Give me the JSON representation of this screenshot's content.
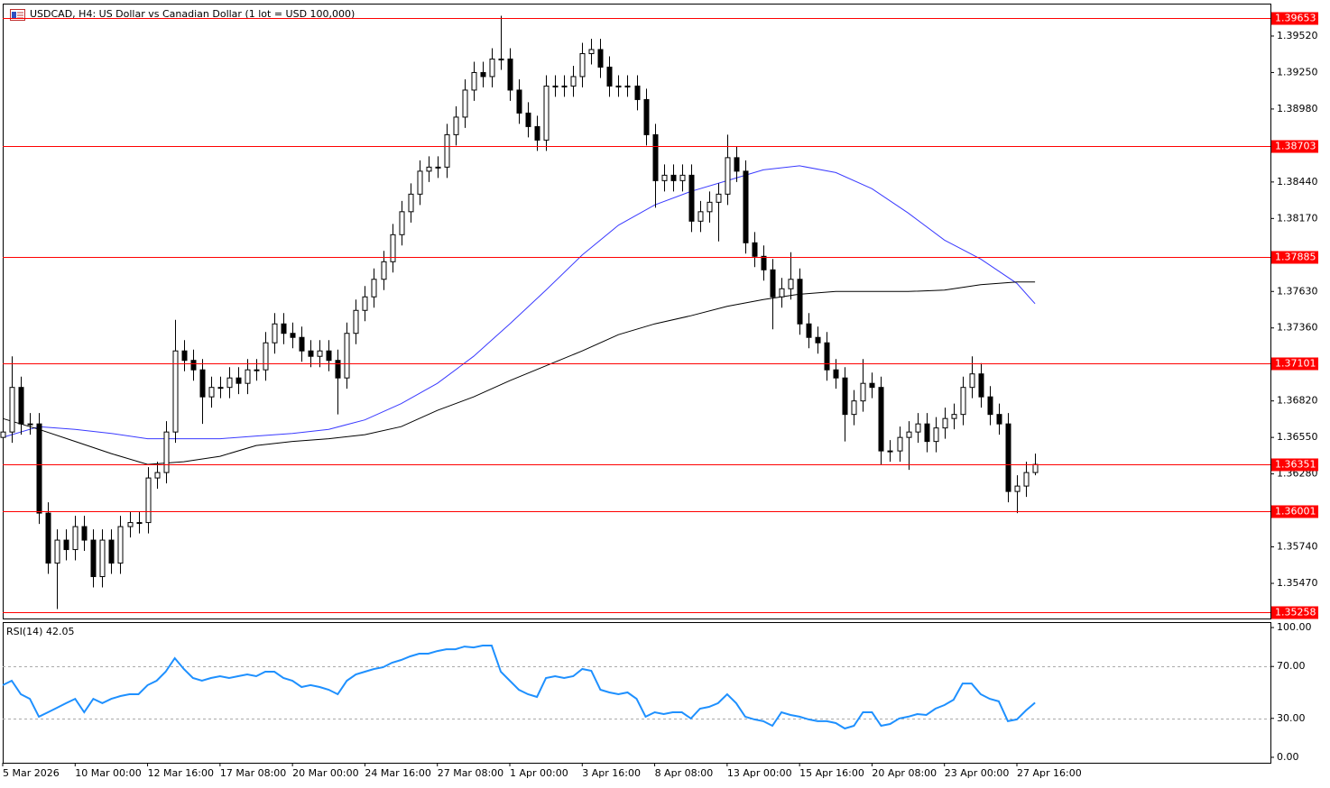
{
  "chart_data": {
    "type": "candlestick",
    "title": "USDCAD, H4:  US Dollar vs Canadian Dollar (1 lot = USD 100,000)",
    "xlim": [
      0,
      140
    ],
    "xticks": [
      {
        "value": 0,
        "label": "5 Mar 2026"
      },
      {
        "value": 8,
        "label": "10 Mar 00:00"
      },
      {
        "value": 16,
        "label": "12 Mar 16:00"
      },
      {
        "value": 24,
        "label": "17 Mar 08:00"
      },
      {
        "value": 32,
        "label": "20 Mar 00:00"
      },
      {
        "value": 40,
        "label": "24 Mar 16:00"
      },
      {
        "value": 48,
        "label": "27 Mar 08:00"
      },
      {
        "value": 56,
        "label": "1 Apr 00:00"
      },
      {
        "value": 64,
        "label": "3 Apr 16:00"
      },
      {
        "value": 72,
        "label": "8 Apr 08:00"
      },
      {
        "value": 80,
        "label": "13 Apr 00:00"
      },
      {
        "value": 88,
        "label": "15 Apr 16:00"
      },
      {
        "value": 96,
        "label": "20 Apr 08:00"
      },
      {
        "value": 104,
        "label": "23 Apr 00:00"
      },
      {
        "value": 112,
        "label": "27 Apr 16:00"
      }
    ],
    "ylim": [
      1.3521,
      1.3976
    ],
    "yticks": [
      {
        "value": 1.3952,
        "label": "1.39520"
      },
      {
        "value": 1.3925,
        "label": "1.39250"
      },
      {
        "value": 1.3898,
        "label": "1.38980"
      },
      {
        "value": 1.3844,
        "label": "1.38440"
      },
      {
        "value": 1.3817,
        "label": "1.38170"
      },
      {
        "value": 1.3763,
        "label": "1.37630"
      },
      {
        "value": 1.3736,
        "label": "1.37360"
      },
      {
        "value": 1.3682,
        "label": "1.36820"
      },
      {
        "value": 1.3655,
        "label": "1.36550"
      },
      {
        "value": 1.3628,
        "label": "1.36280"
      },
      {
        "value": 1.3574,
        "label": "1.35740"
      },
      {
        "value": 1.3547,
        "label": "1.35470"
      }
    ],
    "levels": [
      {
        "value": 1.39653,
        "color": "#ff0000"
      },
      {
        "value": 1.38703,
        "color": "#ff0000"
      },
      {
        "value": 1.37885,
        "color": "#ff0000"
      },
      {
        "value": 1.37101,
        "color": "#ff0000"
      },
      {
        "value": 1.36351,
        "color": "#ff0000"
      },
      {
        "value": 1.36001,
        "color": "#ff0000"
      },
      {
        "value": 1.35258,
        "color": "#ff0000"
      }
    ],
    "bull_color": "#ffffff",
    "bear_color": "#000000",
    "open": [
      1.3655,
      1.3659,
      1.3692,
      1.3665,
      1.3665,
      1.3599,
      1.3562,
      1.3579,
      1.3572,
      1.3589,
      1.3579,
      1.3552,
      1.3579,
      1.3562,
      1.3589,
      1.3592,
      1.3592,
      1.3625,
      1.3629,
      1.3659,
      1.3719,
      1.3712,
      1.3705,
      1.3685,
      1.3692,
      1.3692,
      1.3699,
      1.3695,
      1.3705,
      1.3705,
      1.3725,
      1.3739,
      1.3732,
      1.3729,
      1.3719,
      1.3715,
      1.3719,
      1.3712,
      1.3699,
      1.3732,
      1.3749,
      1.3759,
      1.3772,
      1.3785,
      1.3805,
      1.3822,
      1.3835,
      1.3852,
      1.3855,
      1.3855,
      1.3879,
      1.3892,
      1.3912,
      1.3925,
      1.3922,
      1.3935,
      1.3935,
      1.3912,
      1.3895,
      1.3885,
      1.3875,
      1.3915,
      1.3915,
      1.3915,
      1.3922,
      1.3939,
      1.3942,
      1.3929,
      1.3915,
      1.3915,
      1.3915,
      1.3905,
      1.3879,
      1.3845,
      1.3849,
      1.3845,
      1.3849,
      1.3815,
      1.3822,
      1.3829,
      1.3835,
      1.3862,
      1.3852,
      1.3799,
      1.3789,
      1.3779,
      1.3759,
      1.3765,
      1.3772,
      1.3739,
      1.3729,
      1.3725,
      1.3705,
      1.3699,
      1.3672,
      1.3682,
      1.3695,
      1.3692,
      1.3645,
      1.3645,
      1.3655,
      1.3659,
      1.3665,
      1.3652,
      1.3662,
      1.3669,
      1.3672,
      1.3692,
      1.3702,
      1.3685,
      1.3672,
      1.3665,
      1.3615,
      1.3619,
      1.3629
    ],
    "high": [
      1.3667,
      1.3715,
      1.37,
      1.3673,
      1.3673,
      1.3607,
      1.3587,
      1.3587,
      1.3597,
      1.3597,
      1.3587,
      1.3587,
      1.3587,
      1.3597,
      1.36,
      1.36,
      1.3633,
      1.3637,
      1.3667,
      1.3742,
      1.3727,
      1.372,
      1.3713,
      1.37,
      1.37,
      1.3707,
      1.3707,
      1.3713,
      1.3713,
      1.3733,
      1.3747,
      1.3747,
      1.374,
      1.3737,
      1.3727,
      1.3727,
      1.3727,
      1.372,
      1.374,
      1.3757,
      1.3767,
      1.378,
      1.3793,
      1.3813,
      1.383,
      1.3843,
      1.386,
      1.3863,
      1.3863,
      1.3887,
      1.39,
      1.392,
      1.3933,
      1.3933,
      1.3943,
      1.3967,
      1.3943,
      1.392,
      1.3903,
      1.3893,
      1.3923,
      1.3923,
      1.3923,
      1.393,
      1.3947,
      1.395,
      1.395,
      1.3937,
      1.3923,
      1.3923,
      1.3923,
      1.3913,
      1.3887,
      1.3857,
      1.3857,
      1.3857,
      1.3857,
      1.383,
      1.3837,
      1.3843,
      1.3879,
      1.387,
      1.386,
      1.3807,
      1.3797,
      1.3787,
      1.3773,
      1.3792,
      1.378,
      1.3747,
      1.3737,
      1.3733,
      1.3713,
      1.3707,
      1.369,
      1.3713,
      1.3703,
      1.37,
      1.3653,
      1.3663,
      1.3667,
      1.3673,
      1.3673,
      1.367,
      1.3677,
      1.368,
      1.37,
      1.3715,
      1.371,
      1.3693,
      1.368,
      1.3673,
      1.3627,
      1.3637,
      1.3643
    ],
    "low": [
      1.3647,
      1.3651,
      1.3657,
      1.3657,
      1.3591,
      1.3554,
      1.3528,
      1.3564,
      1.3564,
      1.3571,
      1.3544,
      1.3544,
      1.3554,
      1.3554,
      1.3581,
      1.3584,
      1.3584,
      1.3617,
      1.3621,
      1.3651,
      1.3704,
      1.3697,
      1.3665,
      1.3677,
      1.3684,
      1.3684,
      1.3687,
      1.3687,
      1.3697,
      1.3697,
      1.3717,
      1.3724,
      1.3721,
      1.3711,
      1.3707,
      1.3707,
      1.3704,
      1.3672,
      1.3691,
      1.3724,
      1.3741,
      1.3751,
      1.3764,
      1.3777,
      1.3797,
      1.3814,
      1.3827,
      1.3844,
      1.3847,
      1.3847,
      1.3871,
      1.3884,
      1.3904,
      1.3914,
      1.3914,
      1.3927,
      1.3904,
      1.3887,
      1.3877,
      1.3867,
      1.3867,
      1.3907,
      1.3907,
      1.3907,
      1.3914,
      1.3931,
      1.3921,
      1.3907,
      1.3907,
      1.3907,
      1.3897,
      1.3871,
      1.3825,
      1.3837,
      1.3837,
      1.3837,
      1.3807,
      1.3807,
      1.3814,
      1.38,
      1.3827,
      1.3844,
      1.3791,
      1.3781,
      1.3771,
      1.3735,
      1.3751,
      1.3757,
      1.3731,
      1.3721,
      1.3717,
      1.3697,
      1.3691,
      1.3652,
      1.3664,
      1.3674,
      1.3684,
      1.3635,
      1.3637,
      1.3637,
      1.3631,
      1.3651,
      1.3644,
      1.3644,
      1.3654,
      1.3661,
      1.3664,
      1.3684,
      1.3677,
      1.3664,
      1.3657,
      1.3607,
      1.3599,
      1.3611,
      1.3627
    ],
    "close": [
      1.3659,
      1.3692,
      1.3665,
      1.3665,
      1.3599,
      1.3562,
      1.3579,
      1.3572,
      1.3589,
      1.3579,
      1.3552,
      1.3579,
      1.3562,
      1.3589,
      1.3592,
      1.3592,
      1.3625,
      1.3629,
      1.3659,
      1.3719,
      1.3712,
      1.3705,
      1.3685,
      1.3692,
      1.3692,
      1.3699,
      1.3695,
      1.3705,
      1.3705,
      1.3725,
      1.3739,
      1.3732,
      1.3729,
      1.3719,
      1.3715,
      1.3719,
      1.3712,
      1.3699,
      1.3732,
      1.3749,
      1.3759,
      1.3772,
      1.3785,
      1.3805,
      1.3822,
      1.3835,
      1.3852,
      1.3855,
      1.3855,
      1.3879,
      1.3892,
      1.3912,
      1.3925,
      1.3922,
      1.3935,
      1.3935,
      1.3912,
      1.3895,
      1.3885,
      1.3875,
      1.3915,
      1.3915,
      1.3915,
      1.3922,
      1.3939,
      1.3942,
      1.3929,
      1.3915,
      1.3915,
      1.3915,
      1.3905,
      1.3879,
      1.3845,
      1.3849,
      1.3845,
      1.3849,
      1.3815,
      1.3822,
      1.3829,
      1.3835,
      1.3862,
      1.3852,
      1.3799,
      1.3789,
      1.3779,
      1.3759,
      1.3765,
      1.3772,
      1.3739,
      1.3729,
      1.3725,
      1.3705,
      1.3699,
      1.3672,
      1.3682,
      1.3695,
      1.3692,
      1.3645,
      1.3645,
      1.3655,
      1.3659,
      1.3665,
      1.3652,
      1.3662,
      1.3669,
      1.3672,
      1.3692,
      1.3702,
      1.3685,
      1.3672,
      1.3665,
      1.3615,
      1.3619,
      1.3629,
      1.3635
    ],
    "ma_lines": [
      {
        "color": "#3a3aff",
        "x": [
          0,
          4,
          8,
          12,
          16,
          20,
          24,
          28,
          32,
          36,
          40,
          44,
          48,
          52,
          56,
          60,
          64,
          68,
          72,
          76,
          80,
          84,
          88,
          92,
          96,
          100,
          104,
          108,
          112,
          114
        ],
        "values": [
          1.3655,
          1.3663,
          1.3661,
          1.3658,
          1.3654,
          1.3654,
          1.3654,
          1.3656,
          1.3658,
          1.3661,
          1.3668,
          1.368,
          1.3695,
          1.3715,
          1.3739,
          1.3764,
          1.379,
          1.3812,
          1.3827,
          1.3837,
          1.3845,
          1.3853,
          1.3856,
          1.3851,
          1.3839,
          1.3821,
          1.3801,
          1.3787,
          1.3769,
          1.3754
        ]
      },
      {
        "color": "#000000",
        "x": [
          0,
          4,
          8,
          12,
          16,
          20,
          24,
          28,
          32,
          36,
          40,
          44,
          48,
          52,
          56,
          60,
          64,
          68,
          72,
          76,
          80,
          84,
          88,
          92,
          96,
          100,
          104,
          108,
          112,
          114
        ],
        "values": [
          1.3669,
          1.3661,
          1.3652,
          1.3643,
          1.3635,
          1.3637,
          1.3641,
          1.3649,
          1.3652,
          1.3654,
          1.3657,
          1.3663,
          1.3675,
          1.3685,
          1.3697,
          1.3708,
          1.3719,
          1.3731,
          1.3739,
          1.3745,
          1.3752,
          1.3757,
          1.3761,
          1.3763,
          1.3763,
          1.3763,
          1.3764,
          1.3768,
          1.377,
          1.377
        ]
      }
    ],
    "rsi": {
      "title": "RSI(14) 42.05",
      "color": "#1e90ff",
      "ylim": [
        -4.2,
        104.2
      ],
      "yticks": [
        {
          "value": 100,
          "label": "100.00"
        },
        {
          "value": 70,
          "label": "70.00"
        },
        {
          "value": 30,
          "label": "30.00"
        },
        {
          "value": 0,
          "label": "0.00"
        }
      ],
      "levels": [
        70,
        30
      ],
      "values": [
        55.6,
        59.0,
        48.6,
        45.1,
        31.3,
        34.7,
        38.2,
        41.7,
        45.1,
        34.7,
        45.1,
        41.7,
        45.1,
        47.2,
        48.6,
        48.6,
        55.6,
        59.0,
        66.0,
        76.4,
        68.1,
        61.1,
        59.0,
        61.1,
        62.5,
        61.1,
        62.5,
        63.9,
        62.5,
        66.0,
        66.0,
        61.1,
        59.0,
        54.2,
        55.6,
        54.2,
        52.1,
        48.6,
        59.0,
        63.9,
        66.0,
        68.1,
        69.4,
        72.9,
        75.0,
        77.8,
        79.9,
        79.9,
        81.9,
        83.3,
        83.3,
        85.4,
        84.7,
        86.1,
        86.1,
        66.0,
        59.0,
        52.1,
        48.6,
        46.5,
        61.1,
        62.5,
        61.1,
        62.5,
        68.1,
        66.7,
        52.1,
        50.0,
        48.6,
        50.0,
        45.1,
        31.3,
        34.7,
        33.3,
        34.7,
        34.7,
        29.9,
        37.5,
        38.9,
        41.7,
        48.6,
        41.7,
        31.3,
        29.2,
        27.8,
        24.3,
        34.7,
        32.6,
        31.3,
        29.2,
        27.8,
        27.8,
        26.4,
        22.2,
        24.3,
        34.7,
        34.7,
        24.3,
        25.7,
        29.9,
        31.3,
        33.3,
        32.6,
        37.5,
        40.3,
        44.4,
        56.9,
        56.9,
        48.6,
        45.1,
        43.1,
        27.8,
        29.2,
        36.1,
        42.05
      ]
    }
  }
}
